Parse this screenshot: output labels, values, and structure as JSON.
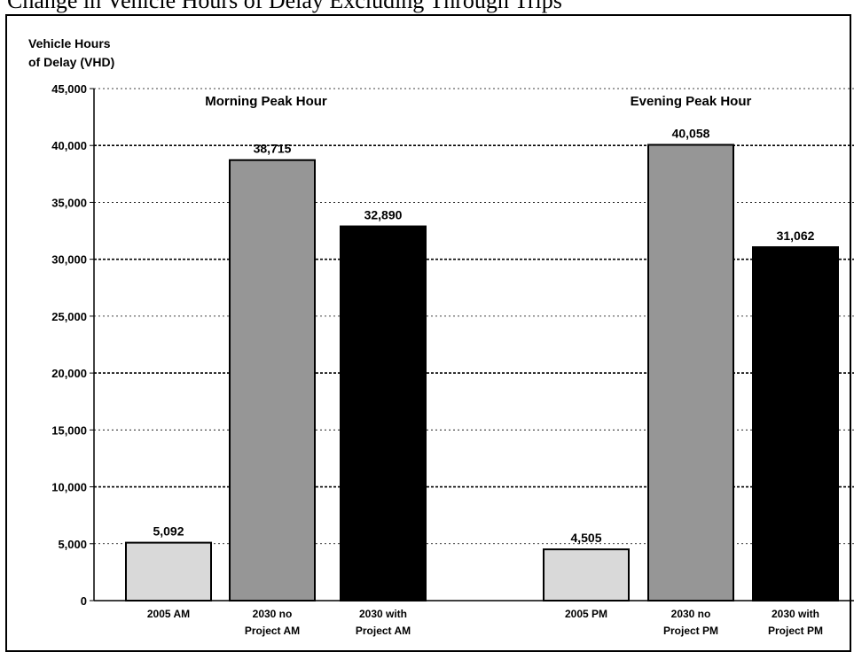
{
  "chart_data": {
    "type": "bar",
    "title": "Change in Vehicle Hours of Delay Excluding Through Trips",
    "ylabel_lines": [
      "Vehicle Hours",
      "of Delay (VHD)"
    ],
    "ylim": [
      0,
      45000
    ],
    "yticks": [
      0,
      5000,
      10000,
      15000,
      20000,
      25000,
      30000,
      35000,
      40000,
      45000
    ],
    "ytick_labels": [
      "0",
      "5,000",
      "10,000",
      "15,000",
      "20,000",
      "25,000",
      "30,000",
      "35,000",
      "40,000",
      "45,000"
    ],
    "grid": true,
    "groups": [
      {
        "label": "Morning Peak Hour",
        "bars": [
          {
            "category_lines": [
              "2005 AM"
            ],
            "value": 5092,
            "value_label": "5,092",
            "color": "#d9d9d9"
          },
          {
            "category_lines": [
              "2030 no",
              "Project AM"
            ],
            "value": 38715,
            "value_label": "38,715",
            "color": "#969696"
          },
          {
            "category_lines": [
              "2030 with",
              "Project AM"
            ],
            "value": 32890,
            "value_label": "32,890",
            "color": "#000000"
          }
        ]
      },
      {
        "label": "Evening Peak Hour",
        "bars": [
          {
            "category_lines": [
              "2005 PM"
            ],
            "value": 4505,
            "value_label": "4,505",
            "color": "#d9d9d9"
          },
          {
            "category_lines": [
              "2030 no",
              "Project PM"
            ],
            "value": 40058,
            "value_label": "40,058",
            "color": "#969696"
          },
          {
            "category_lines": [
              "2030 with",
              "Project PM"
            ],
            "value": 31062,
            "value_label": "31,062",
            "color": "#000000"
          }
        ]
      }
    ]
  }
}
